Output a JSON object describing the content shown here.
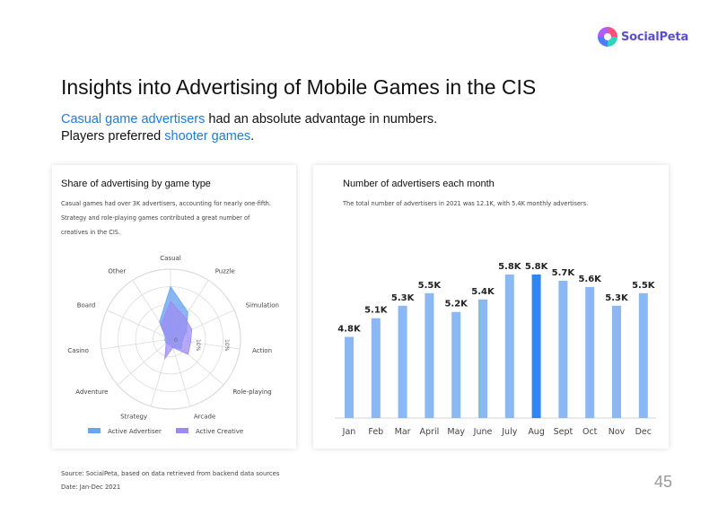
{
  "logo": {
    "text": "SocialPeta"
  },
  "title": "Insights into Advertising of Mobile Games in the CIS",
  "subtitle": {
    "line1": [
      {
        "text": "Casual game advertisers",
        "hl": true
      },
      {
        "text": " had an absolute advantage in numbers.",
        "hl": false
      }
    ],
    "line2": [
      {
        "text": "Players preferred ",
        "hl": false
      },
      {
        "text": "shooter games",
        "hl": true
      },
      {
        "text": ".",
        "hl": false
      }
    ]
  },
  "left_card": {
    "title": "Share of advertising by game type",
    "desc_lines": [
      "Casual games had over 3K advertisers, accounting for nearly one-fifth.",
      "Strategy and role-playing games contributed a great number of",
      "creatives in the CIS."
    ]
  },
  "right_card": {
    "title": "Number of advertisers each month",
    "desc": "The total number of advertisers in 2021 was 12.1K, with 5.4K monthly advertisers."
  },
  "footer": {
    "source": "Source: SocialPeta, based on data retrieved from backend data sources",
    "date": "Date: Jan-Dec 2021"
  },
  "page_number": "45",
  "colors": {
    "accent": "#1f7ae0",
    "bar": "#8ab8f4",
    "bar_highlight": "#2f86f2",
    "radar_advertiser": "#6aa5f0",
    "radar_creative": "#9d8cf2"
  },
  "chart_data": [
    {
      "type": "radar",
      "categories": [
        "Casual",
        "Puzzle",
        "Simulation",
        "Action",
        "Role-playing",
        "Arcade",
        "Strategy",
        "Adventure",
        "Casino",
        "Board",
        "Other"
      ],
      "axis_tick_labels": [
        "0",
        "10%"
      ],
      "series": [
        {
          "name": "Active Advertiser",
          "values": [
            18,
            11,
            6,
            4,
            5,
            3,
            2,
            2,
            2,
            2,
            7
          ]
        },
        {
          "name": "Active Creative",
          "values": [
            13,
            9,
            8,
            7,
            8,
            3,
            7,
            2,
            1,
            2,
            6
          ]
        }
      ],
      "rmax": 24,
      "legend": "bottom",
      "grid": true
    },
    {
      "type": "bar",
      "categories": [
        "Jan",
        "Feb",
        "Mar",
        "April",
        "May",
        "June",
        "July",
        "Aug",
        "Sept",
        "Oct",
        "Nov",
        "Dec"
      ],
      "values": [
        4.8,
        5.1,
        5.3,
        5.5,
        5.2,
        5.4,
        5.8,
        5.8,
        5.7,
        5.6,
        5.3,
        5.5
      ],
      "labels": [
        "4.8K",
        "5.1K",
        "5.3K",
        "5.5K",
        "5.2K",
        "5.4K",
        "5.8K",
        "5.8K",
        "5.7K",
        "5.6K",
        "5.3K",
        "5.5K"
      ],
      "highlight": "Aug",
      "ylim": [
        3.5,
        5.9
      ],
      "grid": false
    }
  ]
}
